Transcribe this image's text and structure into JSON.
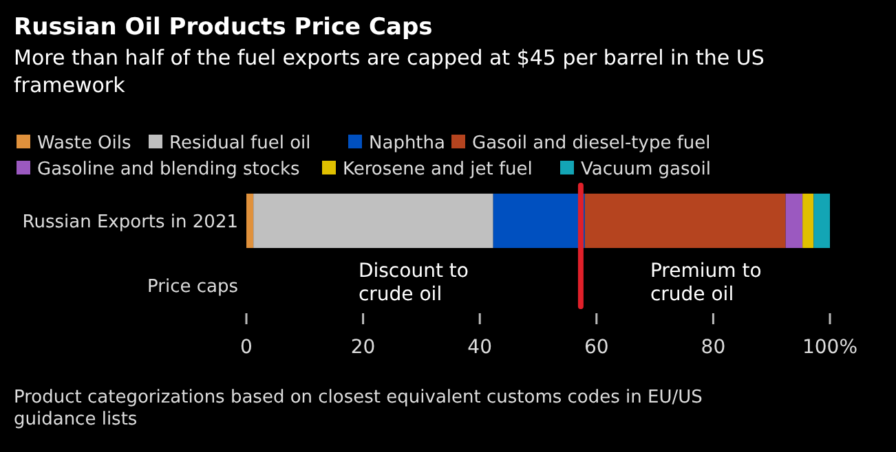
{
  "chart_data": {
    "type": "bar",
    "orientation": "horizontal",
    "stacked": true,
    "title": "Russian Oil Products Price Caps",
    "subtitle": "More than half of the fuel exports are capped at $45 per barrel in the US framework",
    "categories": [
      "Russian Exports in 2021",
      "Price caps"
    ],
    "series": [
      {
        "name": "Waste Oils",
        "color": "#e0913c",
        "values": [
          1.2,
          null
        ]
      },
      {
        "name": "Residual fuel oil",
        "color": "#c0c0c0",
        "values": [
          41.1,
          null
        ]
      },
      {
        "name": "Naphtha",
        "color": "#0050c0",
        "values": [
          15.7,
          null
        ]
      },
      {
        "name": "Gasoil and diesel-type fuel",
        "color": "#b5441f",
        "values": [
          34.4,
          null
        ]
      },
      {
        "name": "Gasoline and blending stocks",
        "color": "#9b59c0",
        "values": [
          2.9,
          null
        ]
      },
      {
        "name": "Kerosene and jet fuel",
        "color": "#e0c000",
        "values": [
          1.9,
          null
        ]
      },
      {
        "name": "Vacuum gasoil",
        "color": "#13a5b5",
        "values": [
          2.8,
          null
        ]
      }
    ],
    "xlim": [
      0,
      100
    ],
    "xticks": [
      0,
      20,
      40,
      60,
      80,
      {
        "value": 100,
        "label": "100%"
      }
    ],
    "ref_lines": [
      {
        "axis": "x",
        "value": 57.3,
        "color": "#e0202a"
      }
    ],
    "annotations": [
      "Discount to crude oil",
      "Premium to crude oil",
      "Product categorizations based on closest equivalent customs codes in EU/US guidance lists"
    ],
    "legend": "top",
    "grid": false
  }
}
